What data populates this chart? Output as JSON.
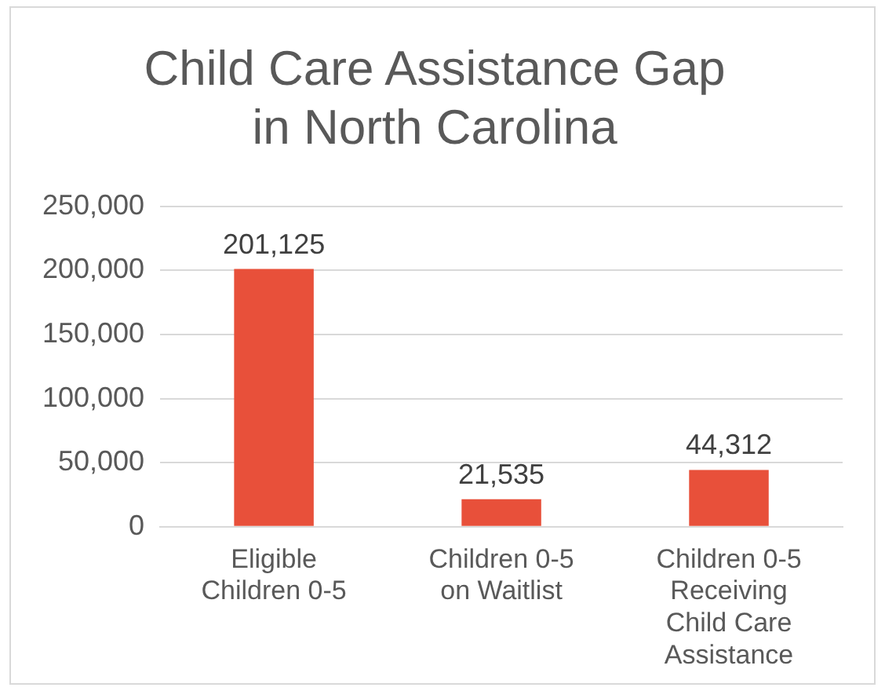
{
  "chart_data": {
    "type": "bar",
    "title": "Child Care Assistance Gap in North Carolina",
    "categories": [
      "Eligible Children 0-5",
      "Children 0-5 on Waitlist",
      "Children 0-5 Receiving Child Care Assistance"
    ],
    "values": [
      201125,
      21535,
      44312
    ],
    "color": "#e8503a",
    "value_labels": [
      "201,125",
      "21,535",
      "44,312"
    ],
    "ylim": [
      0,
      250000
    ],
    "yticks": [
      {
        "value": 0,
        "label": "0"
      },
      {
        "value": 50000,
        "label": "50,000"
      },
      {
        "value": 100000,
        "label": "100,000"
      },
      {
        "value": 150000,
        "label": "150,000"
      },
      {
        "value": 200000,
        "label": "200,000"
      },
      {
        "value": 250000,
        "label": "250,000"
      }
    ],
    "grid": "y",
    "legend": false
  }
}
